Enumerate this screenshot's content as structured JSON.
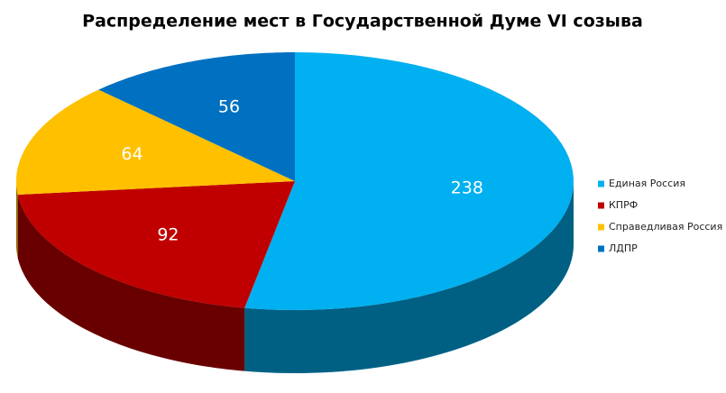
{
  "chart_data": {
    "type": "pie",
    "title": "Распределение мест в Государственной Думе VI созыва",
    "categories": [
      "Единая Россия",
      "КПРФ",
      "Справедливая Россия",
      "ЛДПР"
    ],
    "values": [
      238,
      92,
      64,
      56
    ],
    "colors": [
      "#00b0f0",
      "#c00000",
      "#ffc000",
      "#0070c0"
    ],
    "legend": "right"
  }
}
